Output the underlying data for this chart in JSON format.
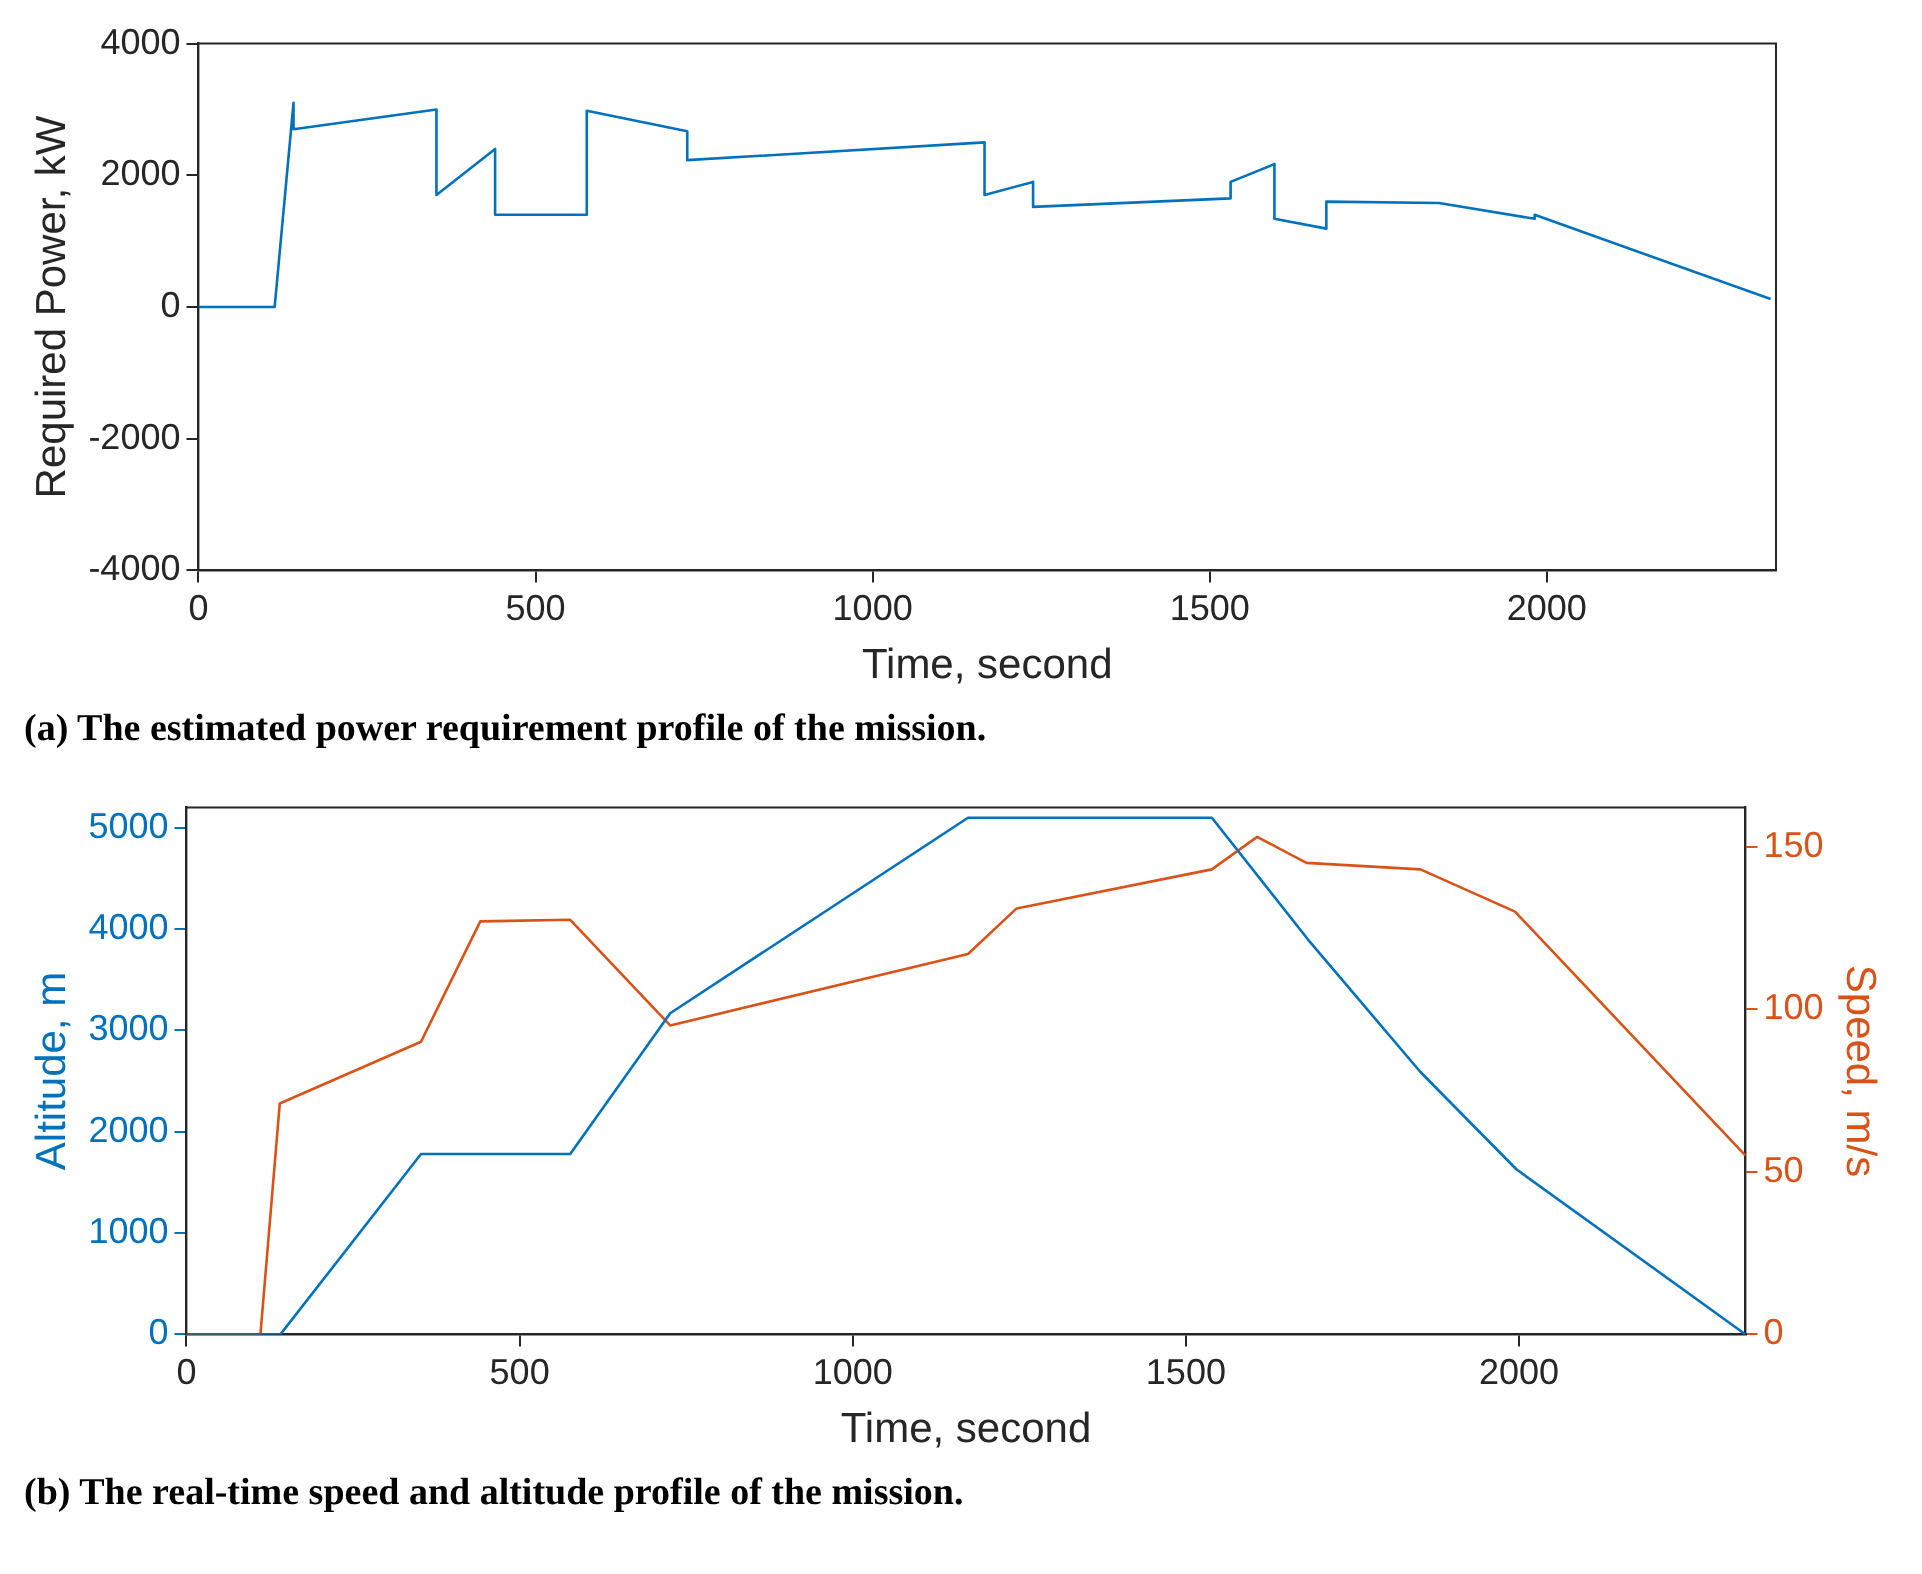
{
  "chart_data": [
    {
      "type": "line",
      "xlabel": "Time, second",
      "ylabel": "Required Power, kW",
      "xlim": [
        0,
        2340
      ],
      "xticks": [
        0,
        500,
        1000,
        1500,
        2000
      ],
      "ylim": [
        -4000,
        4000
      ],
      "yticks": [
        -4000,
        -2000,
        0,
        2000,
        4000
      ],
      "series": [
        {
          "color": "#0072bd",
          "x": [
            0,
            113,
            141,
            141,
            353,
            353,
            440,
            440,
            576,
            576,
            725,
            725,
            1166,
            1166,
            1238,
            1238,
            1531,
            1531,
            1596,
            1596,
            1673,
            1673,
            1840,
            1982,
            1982,
            2332
          ],
          "values": [
            0,
            0,
            3100,
            2700,
            3000,
            1700,
            2400,
            1400,
            1400,
            2980,
            2670,
            2230,
            2500,
            1700,
            1900,
            1520,
            1650,
            1900,
            2170,
            1340,
            1190,
            1600,
            1580,
            1340,
            1400,
            120
          ]
        }
      ],
      "annotations": [
        "(a) The estimated power requirement profile of the mission."
      ]
    },
    {
      "type": "line",
      "xlabel": "Time, second",
      "ylabel": "Altitude, m",
      "y2label": "Speed, m/s",
      "xlim": [
        0,
        2340
      ],
      "xticks": [
        0,
        500,
        1000,
        1500,
        2000
      ],
      "ylim": [
        0,
        5200
      ],
      "yticks": [
        0,
        1000,
        2000,
        3000,
        4000,
        5000
      ],
      "y2lim": [
        0,
        162
      ],
      "y2ticks": [
        0,
        50,
        100,
        150
      ],
      "series": [
        {
          "color": "#0072bd",
          "x": [
            0,
            141,
            352,
            576,
            726,
            1173,
            1539,
            1683,
            1852,
            1996,
            2340
          ],
          "values": [
            0,
            0,
            1780,
            1780,
            3170,
            5100,
            5100,
            3900,
            2590,
            1630,
            0
          ]
        },
        {
          "color": "#d95319",
          "axis": "y2",
          "x": [
            0,
            111,
            140,
            352,
            441,
            576,
            726,
            1173,
            1246,
            1539,
            1607,
            1681,
            1852,
            1994,
            2340
          ],
          "values": [
            0,
            0,
            71,
            90,
            127,
            127.5,
            95,
            117,
            131,
            143,
            153,
            145,
            143,
            130,
            55
          ]
        }
      ],
      "annotations": [
        "(b) The real-time speed and altitude profile of the mission."
      ]
    }
  ]
}
